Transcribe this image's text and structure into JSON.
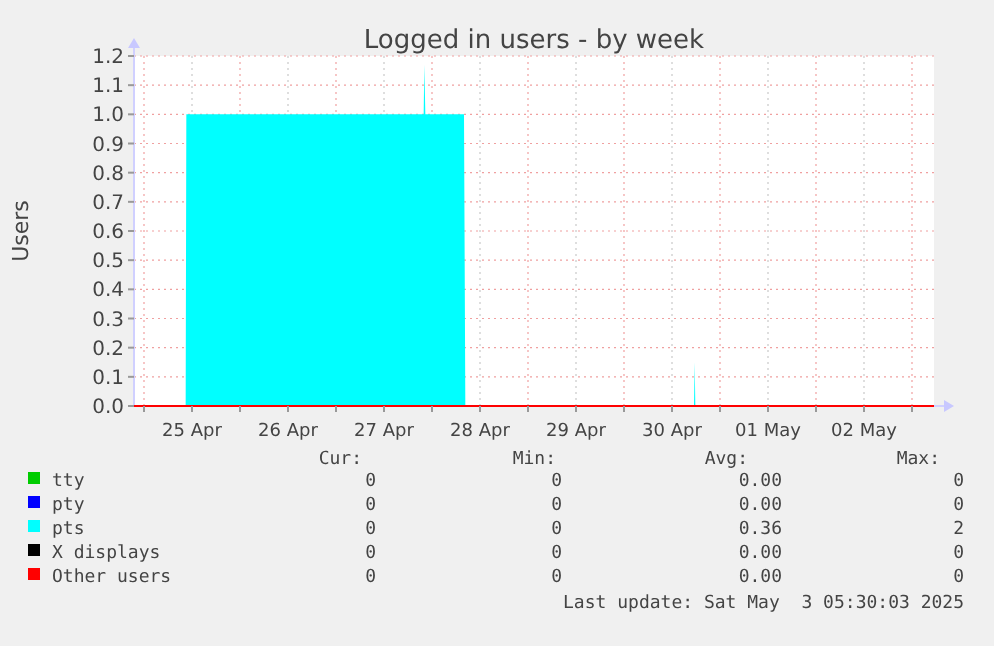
{
  "chart_data": {
    "type": "area",
    "title": "Logged in users - by week",
    "ylabel": "Users",
    "xlim": [
      "2025-04-24T21:30",
      "2025-05-03T05:30"
    ],
    "xticks": [
      {
        "value": "2025-04-25T00:00",
        "label": null
      },
      {
        "value": "2025-04-25T12:00",
        "label": "25 Apr"
      },
      {
        "value": "2025-04-26T00:00",
        "label": null
      },
      {
        "value": "2025-04-26T12:00",
        "label": "26 Apr"
      },
      {
        "value": "2025-04-27T00:00",
        "label": null
      },
      {
        "value": "2025-04-27T12:00",
        "label": "27 Apr"
      },
      {
        "value": "2025-04-28T00:00",
        "label": null
      },
      {
        "value": "2025-04-28T12:00",
        "label": "28 Apr"
      },
      {
        "value": "2025-04-29T00:00",
        "label": null
      },
      {
        "value": "2025-04-29T12:00",
        "label": "29 Apr"
      },
      {
        "value": "2025-04-30T00:00",
        "label": null
      },
      {
        "value": "2025-04-30T12:00",
        "label": "30 Apr"
      },
      {
        "value": "2025-05-01T00:00",
        "label": null
      },
      {
        "value": "2025-05-01T12:00",
        "label": "01 May"
      },
      {
        "value": "2025-05-02T00:00",
        "label": null
      },
      {
        "value": "2025-05-02T12:00",
        "label": "02 May"
      },
      {
        "value": "2025-05-03T00:00",
        "label": null
      }
    ],
    "ylim": [
      0,
      1.2
    ],
    "yticks": [
      {
        "value": 0,
        "label": "0.0"
      },
      0.1,
      0.2,
      0.3,
      0.4,
      0.5,
      0.6,
      0.7,
      0.8,
      0.9,
      {
        "value": 1,
        "label": "1.0"
      },
      1.1,
      1.2
    ],
    "grid": true,
    "legend": "bottom",
    "series": [
      {
        "name": "tty",
        "color": "#00cc00"
      },
      {
        "name": "pty",
        "color": "#0000ff"
      },
      {
        "name": "pts",
        "color": "#00ffff",
        "x": [
          "2025-04-24T21:30",
          "2025-04-25T10:25",
          "2025-04-25T10:35",
          "2025-04-27T21:55",
          "2025-04-27T22:05",
          "2025-04-27T22:20",
          "2025-04-28T08:00",
          "2025-04-28T08:20",
          "2025-04-30T17:30",
          "2025-04-30T17:40",
          "2025-04-30T17:50",
          "2025-05-03T05:30"
        ],
        "values": [
          0,
          0,
          1,
          1,
          1.17,
          1,
          1,
          0,
          0,
          0.15,
          0,
          0
        ]
      },
      {
        "name": "X displays",
        "color": "#000000"
      },
      {
        "name": "Other users",
        "type": "line",
        "color": "#ff0000",
        "x": [
          "2025-04-24T21:30",
          "2025-05-03T05:30"
        ],
        "values": [
          0,
          0
        ]
      }
    ],
    "annotations": [
      "Cur:",
      "Min:",
      "Avg:",
      "Max:",
      "0",
      "0",
      "0.00",
      "0",
      "0",
      "0",
      "0.00",
      "0",
      "0",
      "0",
      "0.36",
      "2",
      "0",
      "0",
      "0.00",
      "0",
      "0",
      "0",
      "0.00",
      "0",
      "Last update: Sat May  3 05:30:03 2025"
    ]
  }
}
